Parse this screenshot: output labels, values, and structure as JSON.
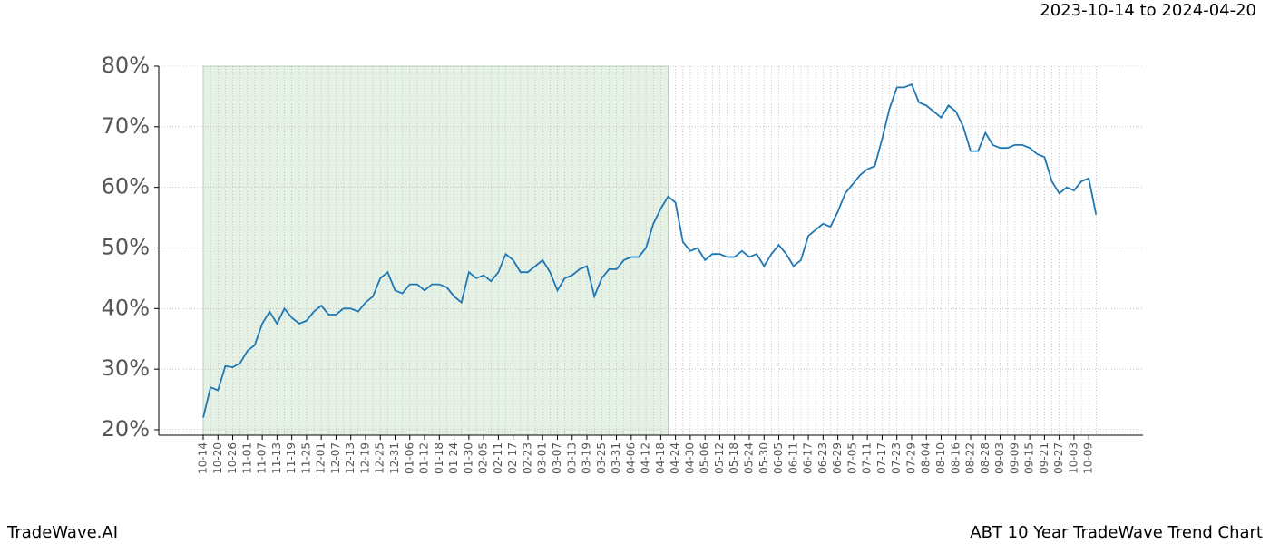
{
  "chart_data": {
    "type": "line",
    "date_range": "2023-10-14 to 2024-04-20",
    "brand": "TradeWave.AI",
    "title": "ABT 10 Year TradeWave Trend Chart",
    "categories": [
      "10-14",
      null,
      "10-20",
      null,
      "10-26",
      null,
      "11-01",
      null,
      "11-07",
      null,
      "11-13",
      null,
      "11-19",
      null,
      "11-25",
      null,
      "12-01",
      null,
      "12-07",
      null,
      "12-13",
      null,
      "12-19",
      null,
      "12-25",
      null,
      "12-31",
      null,
      "01-06",
      null,
      "01-12",
      null,
      "01-18",
      null,
      "01-24",
      null,
      "01-30",
      null,
      "02-05",
      null,
      "02-11",
      null,
      "02-17",
      null,
      "02-23",
      null,
      "03-01",
      null,
      "03-07",
      null,
      "03-13",
      null,
      "03-19",
      null,
      "03-25",
      null,
      "03-31",
      null,
      "04-06",
      null,
      "04-12",
      null,
      "04-18",
      null,
      "04-24",
      null,
      "04-30",
      null,
      "05-06",
      null,
      "05-12",
      null,
      "05-18",
      null,
      "05-24",
      null,
      "05-30",
      null,
      "06-05",
      null,
      "06-11",
      null,
      "06-17",
      null,
      "06-23",
      null,
      "06-29",
      null,
      "07-05",
      null,
      "07-11",
      null,
      "07-17",
      null,
      "07-23",
      null,
      "07-29",
      null,
      "08-04",
      null,
      "08-10",
      null,
      "08-16",
      null,
      "08-22",
      null,
      "08-28",
      null,
      "09-03",
      null,
      "09-09",
      null,
      "09-15",
      null,
      "09-21",
      null,
      "09-27",
      null,
      "10-03",
      null,
      "10-09",
      null
    ],
    "series": [
      {
        "color": "#1f77b4",
        "values": [
          22,
          27,
          26.5,
          30.5,
          30.3,
          31,
          33,
          34,
          37.5,
          39.5,
          37.5,
          40,
          38.5,
          37.5,
          38,
          39.5,
          40.5,
          39,
          39,
          40,
          40,
          39.5,
          41,
          42,
          45,
          46,
          43,
          42.5,
          44,
          44,
          43,
          44,
          44,
          43.5,
          42,
          41,
          46,
          45,
          45.5,
          44.5,
          46,
          49,
          48,
          46,
          46,
          47,
          48,
          46,
          43,
          45,
          45.5,
          46.5,
          47,
          42,
          45,
          46.5,
          46.5,
          48,
          48.5,
          48.5,
          50,
          54,
          56.5,
          58.5,
          57.5,
          51,
          49.5,
          50,
          48,
          49,
          49,
          48.5,
          48.5,
          49.5,
          48.5,
          49,
          47,
          49,
          50.5,
          49,
          47,
          48,
          52,
          53,
          54,
          53.5,
          56,
          59,
          60.5,
          62,
          63,
          63.5,
          68,
          73,
          76.5,
          76.5,
          77,
          74,
          73.5,
          72.5,
          71.5,
          73.5,
          72.5,
          70,
          66,
          66,
          69,
          67,
          66.5,
          66.5,
          67,
          67,
          66.5,
          65.5,
          65,
          61,
          59,
          60,
          59.5,
          61,
          61.5,
          55.5
        ]
      }
    ],
    "ylim": [
      19.1,
      80
    ],
    "yticks": [
      {
        "value": 20,
        "label": "20%"
      },
      {
        "value": 30,
        "label": "30%"
      },
      {
        "value": 40,
        "label": "40%"
      },
      {
        "value": 50,
        "label": "50%"
      },
      {
        "value": 60,
        "label": "60%"
      },
      {
        "value": 70,
        "label": "70%"
      },
      {
        "value": 80,
        "label": "80%"
      }
    ],
    "grid": true,
    "shade": {
      "from": 0,
      "to": 63,
      "color": "#e6f1e6"
    }
  }
}
